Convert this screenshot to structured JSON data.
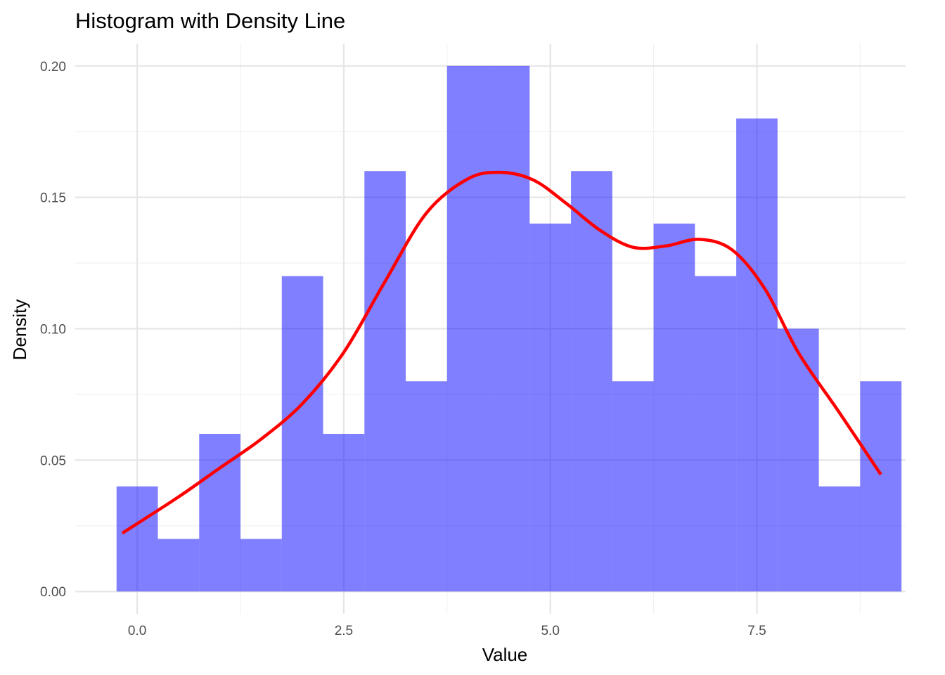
{
  "chart_data": {
    "type": "bar",
    "subtype": "histogram-with-density",
    "title": "Histogram with Density Line",
    "xlabel": "Value",
    "ylabel": "Density",
    "xlim": [
      -0.75,
      9.3
    ],
    "ylim": [
      -0.0085,
      0.2085
    ],
    "x_ticks": [
      0.0,
      2.5,
      5.0,
      7.5
    ],
    "x_tick_labels": [
      "0.0",
      "2.5",
      "5.0",
      "7.5"
    ],
    "y_ticks": [
      0.0,
      0.05,
      0.1,
      0.15,
      0.2
    ],
    "y_tick_labels": [
      "0.00",
      "0.05",
      "0.10",
      "0.15",
      "0.20"
    ],
    "grid": true,
    "bins": {
      "bin_width": 0.5,
      "edges": [
        -0.25,
        0.25,
        0.75,
        1.25,
        1.75,
        2.25,
        2.75,
        3.25,
        3.75,
        4.25,
        4.75,
        5.25,
        5.75,
        6.25,
        6.75,
        7.25,
        7.75,
        8.25,
        8.75,
        9.25
      ],
      "values": [
        0.04,
        0.02,
        0.06,
        0.02,
        0.12,
        0.06,
        0.16,
        0.08,
        0.2,
        0.2,
        0.14,
        0.16,
        0.08,
        0.14,
        0.12,
        0.18,
        0.1,
        0.04,
        0.08
      ],
      "color": "#0000ff"
    },
    "series": [
      {
        "type": "line",
        "color": "#ff0000",
        "x": [
          -0.18,
          0.5,
          1.0,
          1.5,
          2.0,
          2.5,
          3.0,
          3.5,
          4.0,
          4.4,
          4.8,
          5.2,
          5.6,
          6.0,
          6.4,
          6.8,
          7.2,
          7.6,
          8.0,
          8.5,
          9.0
        ],
        "y": [
          0.0222,
          0.036,
          0.047,
          0.058,
          0.0715,
          0.091,
          0.118,
          0.144,
          0.157,
          0.1595,
          0.1565,
          0.1475,
          0.1375,
          0.131,
          0.1315,
          0.134,
          0.13,
          0.115,
          0.091,
          0.068,
          0.0445
        ]
      }
    ]
  }
}
